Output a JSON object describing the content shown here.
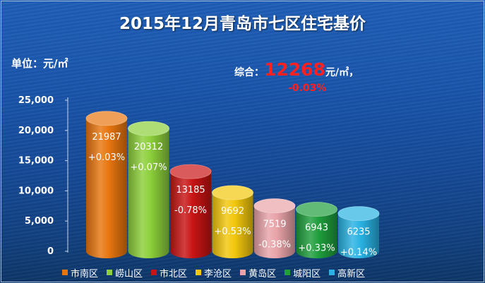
{
  "header": {
    "title": "2015年12月青岛市七区住宅基价",
    "unit_label": "单位：元/㎡"
  },
  "composite": {
    "label": "综合：",
    "value": "12268",
    "unit": "元/㎡，",
    "change": "-0.03%"
  },
  "chart_data": {
    "type": "bar",
    "title": "2015年12月青岛市七区住宅基价",
    "ylabel": "单位：元/㎡",
    "ylim": [
      0,
      25000
    ],
    "yticks": [
      "0",
      "5,000",
      "10,000",
      "15,000",
      "20,000",
      "25,000"
    ],
    "ytick_values": [
      0,
      5000,
      10000,
      15000,
      20000,
      25000
    ],
    "grid": false,
    "legend_position": "bottom",
    "categories": [
      "市南区",
      "崂山区",
      "市北区",
      "李沧区",
      "黄岛区",
      "城阳区",
      "高新区"
    ],
    "values": [
      21987,
      20312,
      13185,
      9692,
      7519,
      6943,
      6235
    ],
    "value_labels": [
      "21987",
      "20312",
      "13185",
      "9692",
      "7519",
      "6943",
      "6235"
    ],
    "changes": [
      "+0.03%",
      "+0.07%",
      "-0.78%",
      "+0.53%",
      "-0.38%",
      "+0.33%",
      "+0.14%"
    ],
    "colors": [
      "#e8760f",
      "#8ccf3a",
      "#c81414",
      "#f2c70c",
      "#e8a3a8",
      "#1f9e3c",
      "#29b2e3"
    ]
  }
}
